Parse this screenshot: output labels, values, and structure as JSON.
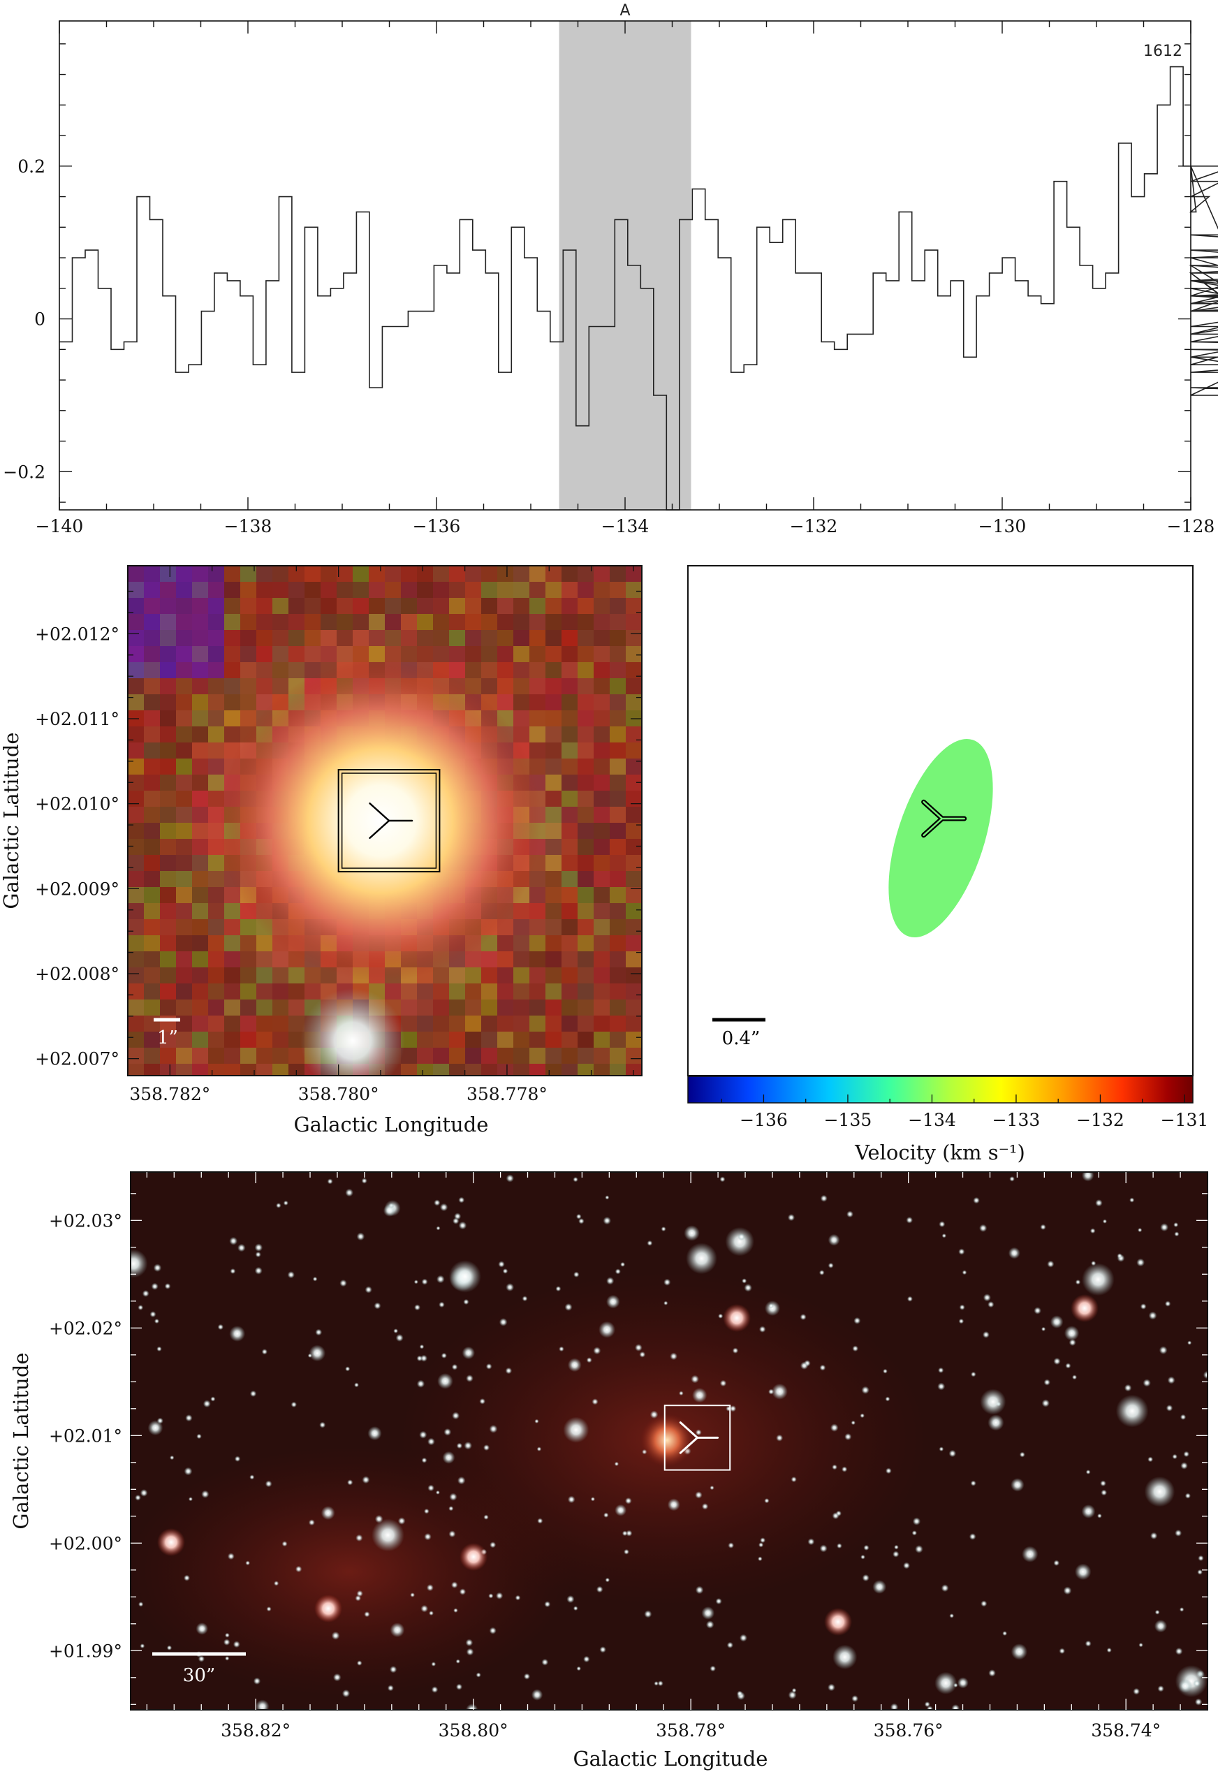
{
  "colors": {
    "spectrum_line": "#222222",
    "highlight_band": "#c8c8c8",
    "ellipse_fill": "#77f577",
    "marker_dark": "#000000",
    "marker_light": "#ffffff",
    "colorbar": [
      "#00008c",
      "#0044ff",
      "#00c8ff",
      "#3cffa0",
      "#b4ff3c",
      "#ffff00",
      "#ffa000",
      "#ff3200",
      "#a00000",
      "#6e0000"
    ]
  },
  "icons": {
    "source_marker": "three-pointed-y-marker",
    "maser_marker": "double-y-marker"
  },
  "chart_data": [
    {
      "type": "line",
      "title": "",
      "label_top_right": "1612",
      "highlight_band": {
        "label": "A",
        "xrange": [
          -134.7,
          -133.3
        ]
      },
      "xlim": [
        -140,
        -128
      ],
      "ylim": [
        -0.25,
        0.39
      ],
      "xticks": [
        -140,
        -138,
        -136,
        -134,
        -132,
        -130,
        -128
      ],
      "xtick_labels": [
        "−140",
        "−138",
        "−136",
        "−134",
        "−132",
        "−130",
        "−128"
      ],
      "yticks": [
        -0.2,
        0,
        0.2
      ],
      "ytick_labels": [
        "−0.2",
        "0",
        "0.2"
      ],
      "xlabel": "",
      "ylabel": "",
      "series": [
        {
          "step": "mid",
          "x_start": -140,
          "dx": 0.137,
          "values": [
            -0.03,
            0.08,
            0.09,
            0.04,
            -0.04,
            -0.03,
            0.16,
            0.13,
            0.03,
            -0.07,
            -0.06,
            0.01,
            0.06,
            0.05,
            0.03,
            -0.06,
            0.05,
            0.16,
            -0.07,
            0.12,
            0.03,
            0.04,
            0.06,
            0.14,
            -0.09,
            -0.01,
            -0.01,
            0.01,
            0.01,
            0.07,
            0.06,
            0.13,
            0.09,
            0.06,
            -0.07,
            0.12,
            0.08,
            0.01,
            -0.03,
            0.09,
            -0.14,
            -0.01,
            -0.01,
            0.13,
            0.07,
            0.04,
            -0.1,
            -0.25,
            0.13,
            0.17,
            0.13,
            0.08,
            -0.07,
            -0.06,
            0.12,
            0.1,
            0.13,
            0.06,
            0.06,
            -0.03,
            -0.04,
            -0.02,
            -0.02,
            0.06,
            0.05,
            0.14,
            0.05,
            0.09,
            0.03,
            0.05,
            -0.05,
            0.03,
            0.06,
            0.08,
            0.05,
            0.03,
            0.02,
            0.18,
            0.12,
            0.07,
            0.04,
            0.06,
            0.23,
            0.16,
            0.19,
            0.28,
            0.33,
            0.2,
            0.14,
            0.16,
            0.18,
            0.2,
            0.03,
            0.06,
            -0.02,
            0.01,
            0.06,
            -0.06,
            -0.01,
            0.02,
            0.07,
            -0.07,
            -0.05,
            -0.09,
            -0.1,
            0.04,
            -0.02,
            0.03,
            0.01,
            0.06,
            0.08,
            -0.03,
            0.05,
            0.01,
            0.03,
            0.05,
            -0.03,
            -0.04,
            -0.05,
            0.05,
            0.08,
            0.11,
            0.07,
            0.03,
            0.01,
            0.02,
            0.09,
            0.04
          ]
        }
      ]
    },
    {
      "type": "heatmap",
      "title": "",
      "xlabel": "Galactic Longitude",
      "ylabel": "Galactic Latitude",
      "xlim": [
        358.7825,
        358.7764
      ],
      "ylim": [
        2.0068,
        2.0128
      ],
      "xticks": [
        358.782,
        358.78,
        358.778
      ],
      "xtick_labels": [
        "358.782°",
        "358.780°",
        "358.778°"
      ],
      "yticks": [
        2.007,
        2.008,
        2.009,
        2.01,
        2.011,
        2.012
      ],
      "ytick_labels": [
        "+02.007°",
        "+02.008°",
        "+02.009°",
        "+02.010°",
        "+02.011°",
        "+02.012°"
      ],
      "scale_bar_label": "1”",
      "source": {
        "l": 358.7794,
        "b": 2.0098
      },
      "box_half_size": 0.0006
    },
    {
      "type": "scatter",
      "title": "",
      "scale_bar_label": "0.4”",
      "colorbar": {
        "label": "Velocity (km s⁻¹)",
        "range": [
          -136.9,
          -130.9
        ],
        "ticks": [
          -136,
          -135,
          -134,
          -133,
          -132,
          -131
        ],
        "tick_labels": [
          "−136",
          "−135",
          "−134",
          "−133",
          "−132",
          "−131"
        ]
      },
      "maser_spot": {
        "velocity": -134.0
      }
    },
    {
      "type": "heatmap",
      "title": "",
      "xlabel": "Galactic Longitude",
      "ylabel": "Galactic Latitude",
      "xlim": [
        358.8315,
        358.7325
      ],
      "ylim": [
        1.9845,
        2.0345
      ],
      "xticks": [
        358.82,
        358.8,
        358.78,
        358.76,
        358.74
      ],
      "xtick_labels": [
        "358.82°",
        "358.80°",
        "358.78°",
        "358.76°",
        "358.74°"
      ],
      "yticks": [
        1.99,
        2.0,
        2.01,
        2.02,
        2.03
      ],
      "ytick_labels": [
        "+01.99°",
        "+02.00°",
        "+02.01°",
        "+02.02°",
        "+02.03°"
      ],
      "scale_bar_label": "30”",
      "source": {
        "l": 358.7794,
        "b": 2.0098
      },
      "box_half_size": 0.003
    }
  ]
}
